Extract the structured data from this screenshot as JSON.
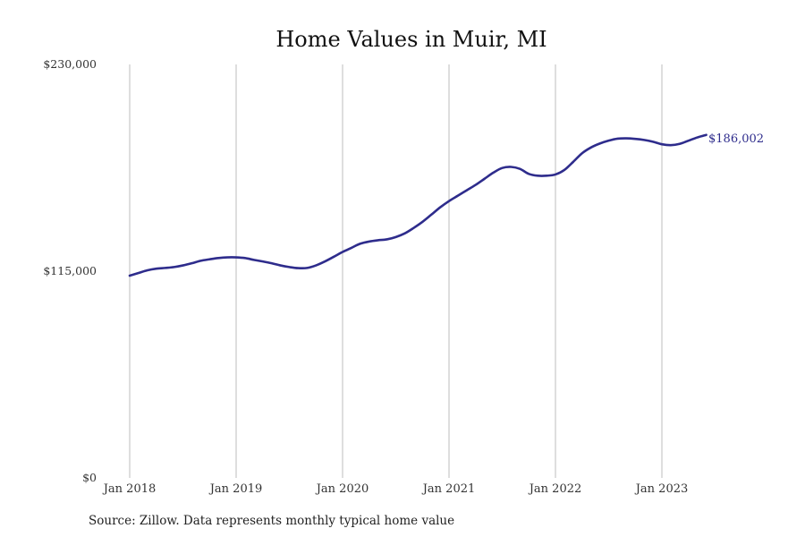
{
  "chart_data": {
    "type": "line",
    "title": "Home Values in Muir, MI",
    "xlabel": "",
    "ylabel": "",
    "ylim": [
      0,
      230000
    ],
    "yticks": [
      0,
      115000,
      230000
    ],
    "ytick_labels": [
      "$0",
      "$115,000",
      "$230,000"
    ],
    "xticks": [
      "2018-01",
      "2019-01",
      "2020-01",
      "2021-01",
      "2022-01",
      "2023-01"
    ],
    "xtick_labels": [
      "Jan 2018",
      "Jan 2019",
      "Jan 2020",
      "Jan 2021",
      "Jan 2022",
      "Jan 2023"
    ],
    "xlim": [
      "2018-01",
      "2023-12"
    ],
    "grid": "vertical",
    "legend": "none",
    "line_color": "#2e2c8c",
    "series": [
      {
        "x": [
          "2018-01",
          "2018-02",
          "2018-03",
          "2018-04",
          "2018-05",
          "2018-06",
          "2018-07",
          "2018-08",
          "2018-09",
          "2018-10",
          "2018-11",
          "2018-12",
          "2019-01",
          "2019-02",
          "2019-03",
          "2019-04",
          "2019-05",
          "2019-06",
          "2019-07",
          "2019-08",
          "2019-09",
          "2019-10",
          "2019-11",
          "2019-12",
          "2020-01",
          "2020-02",
          "2020-03",
          "2020-04",
          "2020-05",
          "2020-06",
          "2020-07",
          "2020-08",
          "2020-09",
          "2020-10",
          "2020-11",
          "2020-12",
          "2021-01",
          "2021-02",
          "2021-03",
          "2021-04",
          "2021-05",
          "2021-06",
          "2021-07",
          "2021-08",
          "2021-09",
          "2021-10",
          "2021-11",
          "2021-12",
          "2022-01",
          "2022-02",
          "2022-03",
          "2022-04",
          "2022-05",
          "2022-06",
          "2022-07",
          "2022-08",
          "2022-09",
          "2022-10",
          "2022-11",
          "2022-12",
          "2023-01",
          "2023-02",
          "2023-03",
          "2023-04",
          "2023-05",
          "2023-06"
        ],
        "values": [
          112500,
          114000,
          115500,
          116400,
          116800,
          117300,
          118200,
          119400,
          120800,
          121600,
          122300,
          122700,
          122700,
          122300,
          121300,
          120400,
          119400,
          118200,
          117300,
          116700,
          116800,
          118200,
          120400,
          123000,
          125700,
          128000,
          130300,
          131500,
          132200,
          132700,
          134000,
          136000,
          139000,
          142400,
          146400,
          150500,
          154000,
          157000,
          160000,
          163000,
          166400,
          169800,
          172400,
          173000,
          171900,
          169100,
          168100,
          168100,
          168800,
          171300,
          175800,
          180600,
          183800,
          186000,
          187600,
          188700,
          188900,
          188600,
          188000,
          187000,
          185600,
          185100,
          185800,
          187600,
          189400,
          190800
        ]
      }
    ],
    "end_label": "$186,002",
    "source": "Source: Zillow. Data represents monthly typical home value"
  }
}
